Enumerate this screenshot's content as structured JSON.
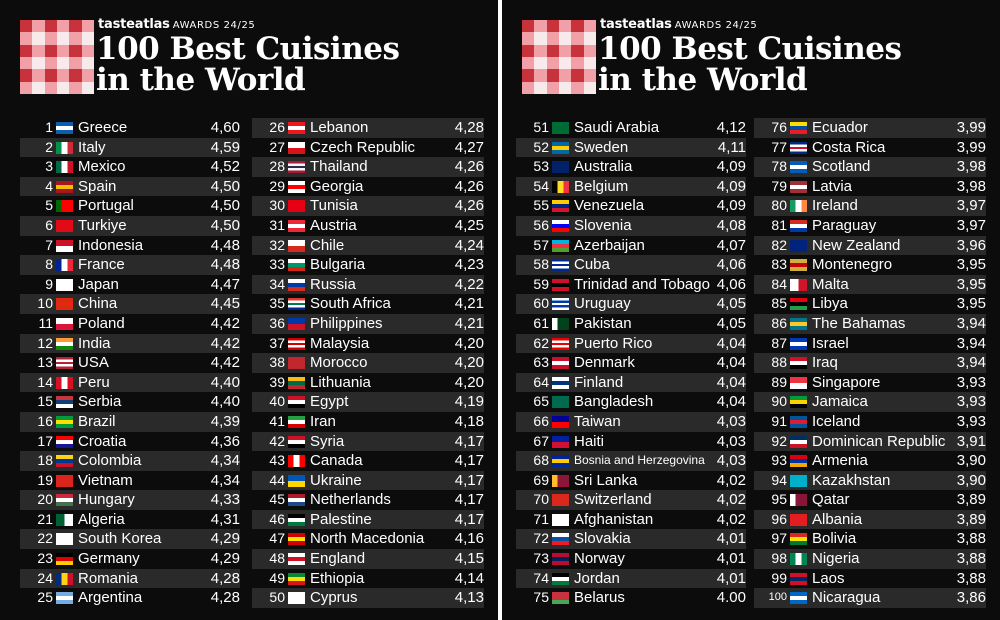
{
  "header": {
    "brand": "tasteatlas",
    "award": "AWARDS 24/25",
    "title_line1": "100 Best Cuisines",
    "title_line2": "in the World"
  },
  "colors": {
    "background": "#0c0c0c",
    "row_stripe": "#2a2a2a",
    "text": "#ffffff",
    "logo_red": "#c8323a",
    "logo_pink": "#f0a0a6",
    "logo_white": "#f6eaea"
  },
  "rankings": [
    {
      "rank": "1",
      "country": "Greece",
      "score": "4,60",
      "flag": [
        "#0d5eaf",
        "#ffffff",
        "#0d5eaf"
      ]
    },
    {
      "rank": "2",
      "country": "Italy",
      "score": "4,59",
      "flag": [
        "#009246",
        "#ffffff",
        "#ce2b37"
      ],
      "v": true
    },
    {
      "rank": "3",
      "country": "Mexico",
      "score": "4,52",
      "flag": [
        "#006847",
        "#ffffff",
        "#ce1126"
      ],
      "v": true
    },
    {
      "rank": "4",
      "country": "Spain",
      "score": "4,50",
      "flag": [
        "#aa151b",
        "#f1bf00",
        "#aa151b"
      ]
    },
    {
      "rank": "5",
      "country": "Portugal",
      "score": "4,50",
      "flag": [
        "#006600",
        "#ff0000",
        "#ff0000"
      ],
      "v": true
    },
    {
      "rank": "6",
      "country": "Turkiye",
      "score": "4,50",
      "flag": [
        "#e30a17",
        "#e30a17",
        "#e30a17"
      ]
    },
    {
      "rank": "7",
      "country": "Indonesia",
      "score": "4,48",
      "flag": [
        "#ce1126",
        "#ffffff"
      ]
    },
    {
      "rank": "8",
      "country": "France",
      "score": "4,48",
      "flag": [
        "#002395",
        "#ffffff",
        "#ed2939"
      ],
      "v": true
    },
    {
      "rank": "9",
      "country": "Japan",
      "score": "4,47",
      "flag": [
        "#ffffff",
        "#ffffff",
        "#ffffff"
      ]
    },
    {
      "rank": "10",
      "country": "China",
      "score": "4,45",
      "flag": [
        "#de2910",
        "#de2910"
      ]
    },
    {
      "rank": "11",
      "country": "Poland",
      "score": "4,42",
      "flag": [
        "#ffffff",
        "#dc143c"
      ]
    },
    {
      "rank": "12",
      "country": "India",
      "score": "4,42",
      "flag": [
        "#ff9933",
        "#ffffff",
        "#138808"
      ]
    },
    {
      "rank": "13",
      "country": "USA",
      "score": "4,42",
      "flag": [
        "#b22234",
        "#ffffff",
        "#b22234",
        "#ffffff",
        "#b22234"
      ]
    },
    {
      "rank": "14",
      "country": "Peru",
      "score": "4,40",
      "flag": [
        "#d91023",
        "#ffffff",
        "#d91023"
      ],
      "v": true
    },
    {
      "rank": "15",
      "country": "Serbia",
      "score": "4,40",
      "flag": [
        "#c6363c",
        "#0c4076",
        "#ffffff"
      ]
    },
    {
      "rank": "16",
      "country": "Brazil",
      "score": "4,39",
      "flag": [
        "#009c3b",
        "#ffdf00",
        "#009c3b"
      ]
    },
    {
      "rank": "17",
      "country": "Croatia",
      "score": "4,36",
      "flag": [
        "#ff0000",
        "#ffffff",
        "#171796"
      ]
    },
    {
      "rank": "18",
      "country": "Colombia",
      "score": "4,34",
      "flag": [
        "#fcd116",
        "#003893",
        "#ce1126"
      ]
    },
    {
      "rank": "19",
      "country": "Vietnam",
      "score": "4,34",
      "flag": [
        "#da251d",
        "#da251d"
      ]
    },
    {
      "rank": "20",
      "country": "Hungary",
      "score": "4,33",
      "flag": [
        "#ce2939",
        "#ffffff",
        "#477050"
      ]
    },
    {
      "rank": "21",
      "country": "Algeria",
      "score": "4,31",
      "flag": [
        "#006233",
        "#ffffff"
      ],
      "v": true
    },
    {
      "rank": "22",
      "country": "South Korea",
      "score": "4,29",
      "flag": [
        "#ffffff",
        "#ffffff"
      ]
    },
    {
      "rank": "23",
      "country": "Germany",
      "score": "4,29",
      "flag": [
        "#000000",
        "#dd0000",
        "#ffce00"
      ]
    },
    {
      "rank": "24",
      "country": "Romania",
      "score": "4,28",
      "flag": [
        "#002b7f",
        "#fcd116",
        "#ce1126"
      ],
      "v": true
    },
    {
      "rank": "25",
      "country": "Argentina",
      "score": "4,28",
      "flag": [
        "#74acdf",
        "#ffffff",
        "#74acdf"
      ]
    },
    {
      "rank": "26",
      "country": "Lebanon",
      "score": "4,28",
      "flag": [
        "#ee161f",
        "#ffffff",
        "#ee161f"
      ]
    },
    {
      "rank": "27",
      "country": "Czech Republic",
      "score": "4,27",
      "flag": [
        "#ffffff",
        "#d7141a"
      ]
    },
    {
      "rank": "28",
      "country": "Thailand",
      "score": "4,26",
      "flag": [
        "#a51931",
        "#f4f5f8",
        "#2d2a4a",
        "#f4f5f8",
        "#a51931"
      ]
    },
    {
      "rank": "29",
      "country": "Georgia",
      "score": "4,26",
      "flag": [
        "#ffffff",
        "#ff0000",
        "#ffffff"
      ]
    },
    {
      "rank": "30",
      "country": "Tunisia",
      "score": "4,26",
      "flag": [
        "#e70013",
        "#e70013"
      ]
    },
    {
      "rank": "31",
      "country": "Austria",
      "score": "4,25",
      "flag": [
        "#ed2939",
        "#ffffff",
        "#ed2939"
      ]
    },
    {
      "rank": "32",
      "country": "Chile",
      "score": "4,24",
      "flag": [
        "#ffffff",
        "#d52b1e"
      ]
    },
    {
      "rank": "33",
      "country": "Bulgaria",
      "score": "4,23",
      "flag": [
        "#ffffff",
        "#00966e",
        "#d62612"
      ]
    },
    {
      "rank": "34",
      "country": "Russia",
      "score": "4,22",
      "flag": [
        "#ffffff",
        "#0039a6",
        "#d52b1e"
      ]
    },
    {
      "rank": "35",
      "country": "South Africa",
      "score": "4,21",
      "flag": [
        "#de3831",
        "#ffffff",
        "#007a4d",
        "#ffffff",
        "#002395"
      ]
    },
    {
      "rank": "36",
      "country": "Philippines",
      "score": "4,21",
      "flag": [
        "#0038a8",
        "#ce1126"
      ]
    },
    {
      "rank": "37",
      "country": "Malaysia",
      "score": "4,20",
      "flag": [
        "#cc0001",
        "#ffffff",
        "#cc0001",
        "#ffffff",
        "#cc0001"
      ]
    },
    {
      "rank": "38",
      "country": "Morocco",
      "score": "4,20",
      "flag": [
        "#c1272d",
        "#c1272d"
      ]
    },
    {
      "rank": "39",
      "country": "Lithuania",
      "score": "4,20",
      "flag": [
        "#fdb913",
        "#006a44",
        "#c1272d"
      ]
    },
    {
      "rank": "40",
      "country": "Egypt",
      "score": "4,19",
      "flag": [
        "#ce1126",
        "#ffffff",
        "#000000"
      ]
    },
    {
      "rank": "41",
      "country": "Iran",
      "score": "4,18",
      "flag": [
        "#239f40",
        "#ffffff",
        "#da0000"
      ]
    },
    {
      "rank": "42",
      "country": "Syria",
      "score": "4,17",
      "flag": [
        "#ce1126",
        "#ffffff",
        "#000000"
      ]
    },
    {
      "rank": "43",
      "country": "Canada",
      "score": "4,17",
      "flag": [
        "#ff0000",
        "#ffffff",
        "#ff0000"
      ],
      "v": true
    },
    {
      "rank": "44",
      "country": "Ukraine",
      "score": "4,17",
      "flag": [
        "#0057b7",
        "#ffd700"
      ]
    },
    {
      "rank": "45",
      "country": "Netherlands",
      "score": "4,17",
      "flag": [
        "#ae1c28",
        "#ffffff",
        "#21468b"
      ]
    },
    {
      "rank": "46",
      "country": "Palestine",
      "score": "4,17",
      "flag": [
        "#000000",
        "#ffffff",
        "#007a3d"
      ]
    },
    {
      "rank": "47",
      "country": "North Macedonia",
      "score": "4,16",
      "flag": [
        "#d20000",
        "#ffe600",
        "#d20000"
      ]
    },
    {
      "rank": "48",
      "country": "England",
      "score": "4,15",
      "flag": [
        "#ffffff",
        "#ce1124",
        "#ffffff"
      ]
    },
    {
      "rank": "49",
      "country": "Ethiopia",
      "score": "4,14",
      "flag": [
        "#078930",
        "#fcdd09",
        "#da121a"
      ]
    },
    {
      "rank": "50",
      "country": "Cyprus",
      "score": "4,13",
      "flag": [
        "#ffffff",
        "#ffffff"
      ]
    },
    {
      "rank": "51",
      "country": "Saudi Arabia",
      "score": "4,12",
      "flag": [
        "#006c35",
        "#006c35"
      ]
    },
    {
      "rank": "52",
      "country": "Sweden",
      "score": "4,11",
      "flag": [
        "#006aa7",
        "#fecc00",
        "#006aa7"
      ]
    },
    {
      "rank": "53",
      "country": "Australia",
      "score": "4,09",
      "flag": [
        "#012169",
        "#012169"
      ]
    },
    {
      "rank": "54",
      "country": "Belgium",
      "score": "4,09",
      "flag": [
        "#000000",
        "#fdda24",
        "#ef3340"
      ],
      "v": true
    },
    {
      "rank": "55",
      "country": "Venezuela",
      "score": "4,09",
      "flag": [
        "#ffcc00",
        "#00247d",
        "#cf142b"
      ]
    },
    {
      "rank": "56",
      "country": "Slovenia",
      "score": "4,08",
      "flag": [
        "#ffffff",
        "#0000ff",
        "#ff0000"
      ]
    },
    {
      "rank": "57",
      "country": "Azerbaijan",
      "score": "4,07",
      "flag": [
        "#00b5e2",
        "#ef3340",
        "#509e2f"
      ]
    },
    {
      "rank": "58",
      "country": "Cuba",
      "score": "4,06",
      "flag": [
        "#002a8f",
        "#ffffff",
        "#002a8f",
        "#ffffff",
        "#002a8f"
      ]
    },
    {
      "rank": "59",
      "country": "Trinidad and Tobago",
      "score": "4,06",
      "flag": [
        "#ce1126",
        "#000000",
        "#ce1126"
      ]
    },
    {
      "rank": "60",
      "country": "Uruguay",
      "score": "4,05",
      "flag": [
        "#ffffff",
        "#0038a8",
        "#ffffff",
        "#0038a8",
        "#ffffff"
      ]
    },
    {
      "rank": "61",
      "country": "Pakistan",
      "score": "4,05",
      "flag": [
        "#ffffff",
        "#01411c",
        "#01411c"
      ],
      "v": true
    },
    {
      "rank": "62",
      "country": "Puerto Rico",
      "score": "4,04",
      "flag": [
        "#ed0000",
        "#ffffff",
        "#ed0000",
        "#ffffff",
        "#ed0000"
      ]
    },
    {
      "rank": "63",
      "country": "Denmark",
      "score": "4,04",
      "flag": [
        "#c8102e",
        "#ffffff",
        "#c8102e"
      ]
    },
    {
      "rank": "64",
      "country": "Finland",
      "score": "4,04",
      "flag": [
        "#ffffff",
        "#003580",
        "#ffffff"
      ]
    },
    {
      "rank": "65",
      "country": "Bangladesh",
      "score": "4,04",
      "flag": [
        "#006a4e",
        "#006a4e"
      ]
    },
    {
      "rank": "66",
      "country": "Taiwan",
      "score": "4,03",
      "flag": [
        "#000095",
        "#fe0000"
      ]
    },
    {
      "rank": "67",
      "country": "Haiti",
      "score": "4,03",
      "flag": [
        "#00209f",
        "#d21034"
      ]
    },
    {
      "rank": "68",
      "country": "Bosnia and Herzegovina",
      "score": "4,03",
      "flag": [
        "#002395",
        "#fecb00",
        "#002395"
      ],
      "small": true
    },
    {
      "rank": "69",
      "country": "Sri Lanka",
      "score": "4,02",
      "flag": [
        "#ffbe29",
        "#8d153a",
        "#8d153a"
      ],
      "v": true
    },
    {
      "rank": "70",
      "country": "Switzerland",
      "score": "4,02",
      "flag": [
        "#da291c",
        "#da291c"
      ]
    },
    {
      "rank": "71",
      "country": "Afghanistan",
      "score": "4,02",
      "flag": [
        "#ffffff",
        "#ffffff"
      ]
    },
    {
      "rank": "72",
      "country": "Slovakia",
      "score": "4,01",
      "flag": [
        "#ffffff",
        "#0b4ea2",
        "#ee1c25"
      ]
    },
    {
      "rank": "73",
      "country": "Norway",
      "score": "4,01",
      "flag": [
        "#ba0c2f",
        "#00205b",
        "#ba0c2f"
      ]
    },
    {
      "rank": "74",
      "country": "Jordan",
      "score": "4,01",
      "flag": [
        "#000000",
        "#ffffff",
        "#007a3d"
      ]
    },
    {
      "rank": "75",
      "country": "Belarus",
      "score": "4.00",
      "flag": [
        "#c8313e",
        "#c8313e",
        "#4aa657"
      ]
    },
    {
      "rank": "76",
      "country": "Ecuador",
      "score": "3,99",
      "flag": [
        "#ffdd00",
        "#034ea2",
        "#ed1c24"
      ]
    },
    {
      "rank": "77",
      "country": "Costa Rica",
      "score": "3,99",
      "flag": [
        "#002b7f",
        "#ffffff",
        "#ce1126",
        "#ffffff",
        "#002b7f"
      ]
    },
    {
      "rank": "78",
      "country": "Scotland",
      "score": "3,98",
      "flag": [
        "#005eb8",
        "#ffffff",
        "#005eb8"
      ]
    },
    {
      "rank": "79",
      "country": "Latvia",
      "score": "3,98",
      "flag": [
        "#9e3039",
        "#ffffff",
        "#9e3039"
      ]
    },
    {
      "rank": "80",
      "country": "Ireland",
      "score": "3,97",
      "flag": [
        "#169b62",
        "#ffffff",
        "#ff883e"
      ],
      "v": true
    },
    {
      "rank": "81",
      "country": "Paraguay",
      "score": "3,97",
      "flag": [
        "#d52b1e",
        "#ffffff",
        "#0038a8"
      ]
    },
    {
      "rank": "82",
      "country": "New Zealand",
      "score": "3,96",
      "flag": [
        "#00247d",
        "#00247d"
      ]
    },
    {
      "rank": "83",
      "country": "Montenegro",
      "score": "3,95",
      "flag": [
        "#d3ae3b",
        "#c40308",
        "#d3ae3b"
      ]
    },
    {
      "rank": "84",
      "country": "Malta",
      "score": "3,95",
      "flag": [
        "#ffffff",
        "#cf142b"
      ],
      "v": true
    },
    {
      "rank": "85",
      "country": "Libya",
      "score": "3,95",
      "flag": [
        "#e70013",
        "#000000",
        "#239e46"
      ]
    },
    {
      "rank": "86",
      "country": "The Bahamas",
      "score": "3,94",
      "flag": [
        "#00778b",
        "#ffc72c",
        "#00778b"
      ]
    },
    {
      "rank": "87",
      "country": "Israel",
      "score": "3,94",
      "flag": [
        "#0038b8",
        "#ffffff",
        "#0038b8"
      ]
    },
    {
      "rank": "88",
      "country": "Iraq",
      "score": "3,94",
      "flag": [
        "#ce1126",
        "#ffffff",
        "#000000"
      ]
    },
    {
      "rank": "89",
      "country": "Singapore",
      "score": "3,93",
      "flag": [
        "#ef3340",
        "#ffffff"
      ]
    },
    {
      "rank": "90",
      "country": "Jamaica",
      "score": "3,93",
      "flag": [
        "#009b3a",
        "#fed100",
        "#000000"
      ]
    },
    {
      "rank": "91",
      "country": "Iceland",
      "score": "3,93",
      "flag": [
        "#02529c",
        "#dc1e35",
        "#02529c"
      ]
    },
    {
      "rank": "92",
      "country": "Dominican Republic",
      "score": "3,91",
      "flag": [
        "#002d62",
        "#ffffff",
        "#ce1126"
      ]
    },
    {
      "rank": "93",
      "country": "Armenia",
      "score": "3,90",
      "flag": [
        "#d90012",
        "#0033a0",
        "#f2a800"
      ]
    },
    {
      "rank": "94",
      "country": "Kazakhstan",
      "score": "3,90",
      "flag": [
        "#00afca",
        "#00afca"
      ]
    },
    {
      "rank": "95",
      "country": "Qatar",
      "score": "3,89",
      "flag": [
        "#ffffff",
        "#8a1538",
        "#8a1538"
      ],
      "v": true
    },
    {
      "rank": "96",
      "country": "Albania",
      "score": "3,89",
      "flag": [
        "#e41e20",
        "#e41e20"
      ]
    },
    {
      "rank": "97",
      "country": "Bolivia",
      "score": "3,88",
      "flag": [
        "#d52b1e",
        "#f9e300",
        "#007934"
      ]
    },
    {
      "rank": "98",
      "country": "Nigeria",
      "score": "3,88",
      "flag": [
        "#008751",
        "#ffffff",
        "#008751"
      ],
      "v": true
    },
    {
      "rank": "99",
      "country": "Laos",
      "score": "3,88",
      "flag": [
        "#ce1126",
        "#002868",
        "#ce1126"
      ]
    },
    {
      "rank": "100",
      "country": "Nicaragua",
      "score": "3,86",
      "flag": [
        "#0067c6",
        "#ffffff",
        "#0067c6"
      ]
    }
  ]
}
